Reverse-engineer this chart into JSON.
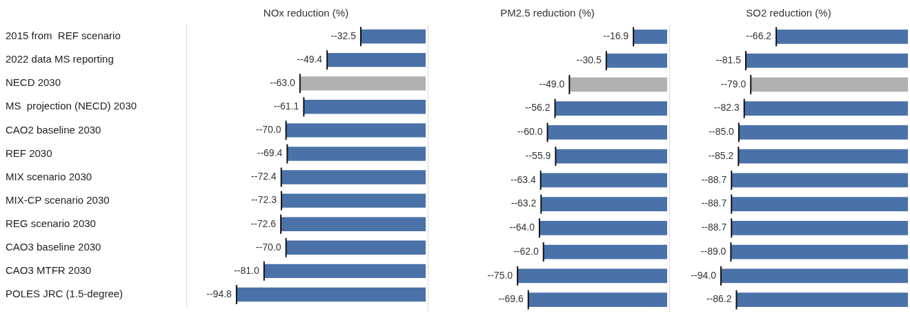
{
  "chart_data": [
    {
      "type": "bar",
      "orientation": "horizontal",
      "title": "NOx reduction (%)",
      "categories": [
        "2015 from  REF scenario",
        "2022 data MS reporting",
        "NECD 2030",
        "MS  projection (NECD) 2030",
        "CAO2 baseline 2030",
        "REF 2030",
        "MIX scenario 2030",
        "MIX-CP scenario 2030",
        "REG scenario 2030",
        "CAO3 baseline 2030",
        "CAO3 MTFR 2030",
        "POLES JRC (1.5-degree)"
      ],
      "values": [
        -32.5,
        -49.4,
        -63.0,
        -61.1,
        -70.0,
        -69.4,
        -72.4,
        -72.3,
        -72.6,
        -70.0,
        -81.0,
        -94.8
      ],
      "value_labels": [
        "--32.5",
        "--49.4",
        "--63.0",
        "--61.1",
        "--70.0",
        "--69.4",
        "--72.4",
        "--72.3",
        "--72.6",
        "--70.0",
        "--81.0",
        "--94.8"
      ],
      "colors": [
        "#4a72a8",
        "#4a72a8",
        "#b1b1b1",
        "#4a72a8",
        "#4a72a8",
        "#4a72a8",
        "#4a72a8",
        "#4a72a8",
        "#4a72a8",
        "#4a72a8",
        "#4a72a8",
        "#4a72a8"
      ],
      "xlim": [
        -120,
        0
      ],
      "tick_labels": "y"
    },
    {
      "type": "bar",
      "orientation": "horizontal",
      "title": "PM2.5 reduction (%)",
      "categories": [
        null,
        null,
        null,
        null,
        null,
        null,
        null,
        null,
        null,
        null,
        null,
        null
      ],
      "values": [
        -16.9,
        -30.5,
        -49.0,
        -56.2,
        -60.0,
        -55.9,
        -63.4,
        -63.2,
        -64.0,
        -62.0,
        -75.0,
        -69.6
      ],
      "value_labels": [
        "--16.9",
        "--30.5",
        "--49.0",
        "--56.2",
        "--60.0",
        "--55.9",
        "--63.4",
        "--63.2",
        "--64.0",
        "--62.0",
        "--75.0",
        "--69.6"
      ],
      "colors": [
        "#4a72a8",
        "#4a72a8",
        "#b1b1b1",
        "#4a72a8",
        "#4a72a8",
        "#4a72a8",
        "#4a72a8",
        "#4a72a8",
        "#4a72a8",
        "#4a72a8",
        "#4a72a8",
        "#4a72a8"
      ],
      "xlim": [
        -120,
        0
      ],
      "tick_labels": false
    },
    {
      "type": "bar",
      "orientation": "horizontal",
      "title": "SO2 reduction (%)",
      "categories": [
        null,
        null,
        null,
        null,
        null,
        null,
        null,
        null,
        null,
        null,
        null,
        null
      ],
      "values": [
        -66.2,
        -81.5,
        -79.0,
        -82.3,
        -85.0,
        -85.2,
        -88.7,
        -88.7,
        -88.7,
        -89.0,
        -94.0,
        -86.2
      ],
      "value_labels": [
        "--66.2",
        "--81.5",
        "--79.0",
        "--82.3",
        "--85.0",
        "--85.2",
        "--88.7",
        "--88.7",
        "--88.7",
        "--89.0",
        "--94.0",
        "--86.2"
      ],
      "colors": [
        "#4a72a8",
        "#4a72a8",
        "#b1b1b1",
        "#4a72a8",
        "#4a72a8",
        "#4a72a8",
        "#4a72a8",
        "#4a72a8",
        "#4a72a8",
        "#4a72a8",
        "#4a72a8",
        "#4a72a8"
      ],
      "xlim": [
        -120,
        0
      ],
      "tick_labels": false
    }
  ]
}
